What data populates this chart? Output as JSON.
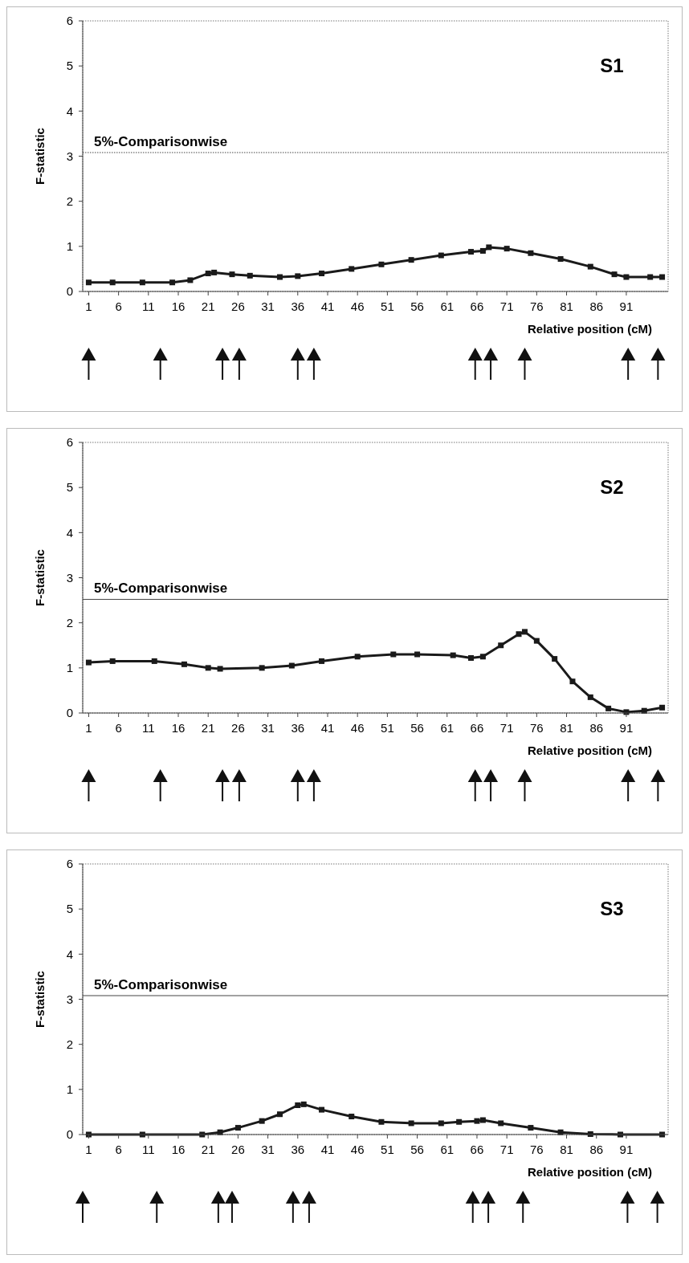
{
  "chart_data": [
    {
      "type": "line",
      "annotations": [
        "S1"
      ],
      "xlabel": "Relative position (cM)",
      "ylabel": "F-statistic",
      "xlim": [
        0,
        98
      ],
      "ylim": [
        0,
        6
      ],
      "xticks": [
        1,
        6,
        11,
        16,
        21,
        26,
        31,
        36,
        41,
        46,
        51,
        56,
        61,
        66,
        71,
        76,
        81,
        86,
        91
      ],
      "yticks": [
        0,
        1,
        2,
        3,
        4,
        5,
        6
      ],
      "marker": "square",
      "grid": false,
      "ref_lines": [
        {
          "axis": "y",
          "value": 3.08,
          "label": "5%-Comparisonwise",
          "line_style": "dotted"
        }
      ],
      "series": [
        {
          "color": "#1a1a1a",
          "x": [
            1,
            5,
            10,
            15,
            18,
            21,
            22,
            25,
            28,
            33,
            36,
            40,
            45,
            50,
            55,
            60,
            65,
            67,
            68,
            71,
            75,
            80,
            85,
            89,
            91,
            95,
            97
          ],
          "values": [
            0.2,
            0.2,
            0.2,
            0.2,
            0.25,
            0.4,
            0.42,
            0.38,
            0.35,
            0.32,
            0.34,
            0.4,
            0.5,
            0.6,
            0.7,
            0.8,
            0.88,
            0.9,
            0.98,
            0.95,
            0.85,
            0.72,
            0.55,
            0.38,
            0.32,
            0.32,
            0.32
          ]
        }
      ]
    },
    {
      "type": "line",
      "annotations": [
        "S2"
      ],
      "xlabel": "Relative position (cM)",
      "ylabel": "F-statistic",
      "xlim": [
        0,
        98
      ],
      "ylim": [
        0,
        6
      ],
      "xticks": [
        1,
        6,
        11,
        16,
        21,
        26,
        31,
        36,
        41,
        46,
        51,
        56,
        61,
        66,
        71,
        76,
        81,
        86,
        91
      ],
      "yticks": [
        0,
        1,
        2,
        3,
        4,
        5,
        6
      ],
      "marker": "square",
      "grid": false,
      "ref_lines": [
        {
          "axis": "y",
          "value": 2.52,
          "label": "5%-Comparisonwise",
          "line_style": "solid"
        }
      ],
      "series": [
        {
          "color": "#1a1a1a",
          "x": [
            1,
            5,
            12,
            17,
            21,
            23,
            30,
            35,
            40,
            46,
            52,
            56,
            62,
            65,
            67,
            70,
            73,
            74,
            76,
            79,
            82,
            85,
            88,
            91,
            94,
            97
          ],
          "values": [
            1.12,
            1.15,
            1.15,
            1.08,
            1.0,
            0.98,
            1.0,
            1.05,
            1.15,
            1.25,
            1.3,
            1.3,
            1.28,
            1.22,
            1.25,
            1.5,
            1.75,
            1.8,
            1.6,
            1.2,
            0.7,
            0.35,
            0.1,
            0.02,
            0.05,
            0.12
          ]
        }
      ]
    },
    {
      "type": "line",
      "annotations": [
        "S3"
      ],
      "xlabel": "Relative position (cM)",
      "ylabel": "F-statistic",
      "xlim": [
        0,
        98
      ],
      "ylim": [
        0,
        6
      ],
      "xticks": [
        1,
        6,
        11,
        16,
        21,
        26,
        31,
        36,
        41,
        46,
        51,
        56,
        61,
        66,
        71,
        76,
        81,
        86,
        91
      ],
      "yticks": [
        0,
        1,
        2,
        3,
        4,
        5,
        6
      ],
      "marker": "square",
      "grid": false,
      "ref_lines": [
        {
          "axis": "y",
          "value": 3.08,
          "label": "5%-Comparisonwise",
          "line_style": "solid"
        }
      ],
      "series": [
        {
          "color": "#1a1a1a",
          "x": [
            1,
            10,
            20,
            23,
            26,
            30,
            33,
            36,
            37,
            40,
            45,
            50,
            55,
            60,
            63,
            66,
            67,
            70,
            75,
            80,
            85,
            90,
            97
          ],
          "values": [
            0,
            0,
            0,
            0.05,
            0.15,
            0.3,
            0.45,
            0.65,
            0.67,
            0.55,
            0.4,
            0.28,
            0.25,
            0.25,
            0.28,
            0.3,
            0.32,
            0.25,
            0.15,
            0.05,
            0.01,
            0,
            0
          ]
        }
      ]
    }
  ]
}
